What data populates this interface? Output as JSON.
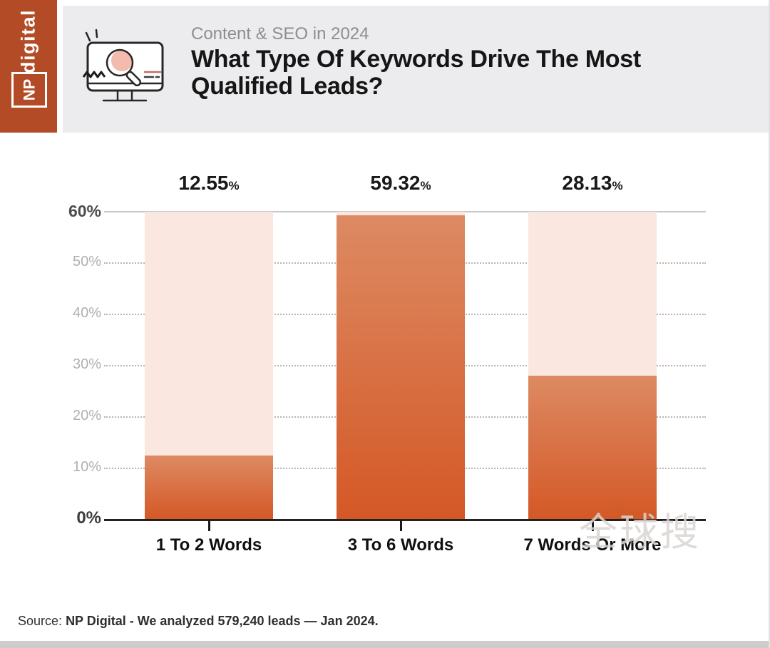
{
  "brand": {
    "np": "NP",
    "digital": "digital",
    "banner_color": "#b24b26"
  },
  "header": {
    "eyebrow": "Content & SEO in 2024",
    "title_line1": "What Type Of Keywords Drive The Most",
    "title_line2": "Qualified Leads?"
  },
  "chart_data": {
    "type": "bar",
    "title": "What Type Of Keywords Drive The Most Qualified Leads?",
    "subtitle": "Content & SEO in 2024",
    "categories": [
      "1 To 2 Words",
      "3 To 6 Words",
      "7 Words Or More"
    ],
    "values": [
      12.55,
      59.32,
      28.13
    ],
    "value_labels": [
      "12.55",
      "59.32",
      "28.13"
    ],
    "unit": "%",
    "xlabel": "",
    "ylabel": "",
    "ylim": [
      0,
      60
    ],
    "yticks": [
      "60%",
      "50%",
      "40%",
      "30%",
      "20%",
      "10%",
      "0%"
    ],
    "grid": "horizontal dotted, solid top line at 60%, legend none",
    "colors": {
      "bar_fill_top": "#dd8a63",
      "bar_fill_bottom": "#d45826",
      "bar_background": "#f9e7e0",
      "accent": "#b24b26"
    }
  },
  "watermark": "全球搜",
  "source": {
    "prefix": "Source:",
    "text": "NP Digital - We analyzed 579,240 leads — Jan 2024."
  }
}
